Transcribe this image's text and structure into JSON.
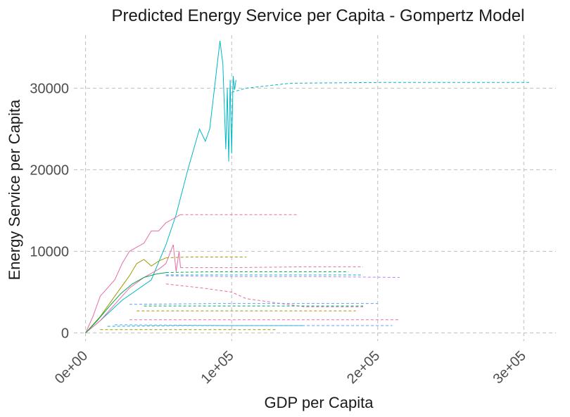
{
  "chart_data": {
    "type": "line",
    "title": "Predicted Energy Service per Capita - Gompertz Model",
    "xlabel": "GDP per Capita",
    "ylabel": "Energy Service per Capita",
    "xlim": [
      -8000,
      322000
    ],
    "ylim": [
      -1000,
      36500
    ],
    "x_ticks": [
      0,
      100000,
      200000,
      300000
    ],
    "x_tick_labels": [
      "0e+00",
      "1e+05",
      "2e+05",
      "3e+05"
    ],
    "y_ticks": [
      0,
      10000,
      20000,
      30000
    ],
    "y_tick_labels": [
      "0",
      "10000",
      "20000",
      "30000"
    ],
    "grid": true,
    "legend": "none",
    "series": [
      {
        "color": "#00B8C4",
        "style": "solid",
        "x": [
          0,
          10000,
          25000,
          45000,
          55000,
          62000,
          70000,
          78000,
          82000,
          85000,
          92000,
          94000,
          96000,
          97000,
          98000,
          99000,
          100000,
          101000,
          102000,
          103000
        ],
        "y": [
          0,
          1500,
          4000,
          6500,
          10800,
          14500,
          20000,
          25000,
          23500,
          25000,
          35800,
          33000,
          22500,
          30000,
          21000,
          31000,
          22000,
          31500,
          29800,
          31000
        ]
      },
      {
        "color": "#00B8C4",
        "style": "dashed",
        "x": [
          100000,
          110000,
          140000,
          200000,
          250000,
          305000
        ],
        "y": [
          29500,
          30000,
          30600,
          30700,
          30700,
          30700
        ]
      },
      {
        "color": "#E86BA8",
        "style": "solid",
        "x": [
          0,
          5000,
          10000,
          20000,
          25000,
          30000,
          40000,
          45000,
          50000,
          55000,
          60000,
          65000
        ],
        "y": [
          0,
          2000,
          4500,
          6500,
          8500,
          10000,
          11000,
          12500,
          12500,
          13500,
          14000,
          14500
        ]
      },
      {
        "color": "#E86BA8",
        "style": "dashed",
        "x": [
          65000,
          80000,
          100000,
          145000
        ],
        "y": [
          14500,
          14500,
          14500,
          14500
        ]
      },
      {
        "color": "#E86BA8",
        "style": "solid",
        "x": [
          0,
          10000,
          20000,
          30000,
          40000,
          50000,
          55000,
          60000,
          62000,
          64000,
          65000
        ],
        "y": [
          0,
          1500,
          3500,
          5500,
          6800,
          7800,
          8500,
          10800,
          7500,
          10000,
          8000
        ]
      },
      {
        "color": "#E86BA8",
        "style": "dashed",
        "x": [
          65000,
          100000,
          150000,
          190000
        ],
        "y": [
          8000,
          8000,
          8100,
          8100
        ]
      },
      {
        "color": "#9E9A00",
        "style": "solid",
        "x": [
          0,
          10000,
          20000,
          30000,
          35000,
          40000,
          45000,
          50000,
          55000
        ],
        "y": [
          0,
          2000,
          4500,
          7000,
          8500,
          9000,
          8200,
          8800,
          9200
        ]
      },
      {
        "color": "#9E9A00",
        "style": "dashed",
        "x": [
          55000,
          70000,
          90000,
          110000
        ],
        "y": [
          9200,
          9300,
          9300,
          9300
        ]
      },
      {
        "color": "#00A651",
        "style": "solid",
        "x": [
          0,
          8000,
          16000,
          24000,
          32000,
          40000,
          48000,
          55000
        ],
        "y": [
          0,
          1500,
          3200,
          4800,
          6000,
          6800,
          7200,
          7400
        ]
      },
      {
        "color": "#00A651",
        "style": "dashed",
        "x": [
          55000,
          90000,
          130000,
          180000
        ],
        "y": [
          7400,
          7500,
          7500,
          7500
        ]
      },
      {
        "color": "#C77CFF",
        "style": "dashed",
        "x": [
          55000,
          100000,
          160000,
          215000
        ],
        "y": [
          7000,
          6900,
          6900,
          6800
        ]
      },
      {
        "color": "#00B8C4",
        "style": "dashed",
        "x": [
          55000,
          90000,
          140000,
          190000
        ],
        "y": [
          7100,
          7100,
          7100,
          7100
        ]
      },
      {
        "color": "#E86BA8",
        "style": "dashed",
        "x": [
          55000,
          80000,
          100000,
          110000,
          150000,
          190000
        ],
        "y": [
          6000,
          5500,
          5000,
          4200,
          3200,
          3200
        ]
      },
      {
        "color": "#00A651",
        "style": "dashed",
        "x": [
          40000,
          90000,
          150000,
          190000
        ],
        "y": [
          3300,
          3300,
          3300,
          3300
        ]
      },
      {
        "color": "#9E9A00",
        "style": "dashed",
        "x": [
          35000,
          90000,
          140000,
          185000
        ],
        "y": [
          2700,
          2700,
          2700,
          2700
        ]
      },
      {
        "color": "#619CFF",
        "style": "dashed",
        "x": [
          30000,
          90000,
          150000,
          200000
        ],
        "y": [
          3500,
          3600,
          3600,
          3600
        ]
      },
      {
        "color": "#E86BA8",
        "style": "dashed",
        "x": [
          30000,
          100000,
          160000,
          215000
        ],
        "y": [
          1600,
          1600,
          1600,
          1600
        ]
      },
      {
        "color": "#619CFF",
        "style": "dashed",
        "x": [
          20000,
          100000,
          160000,
          210000
        ],
        "y": [
          1000,
          900,
          900,
          900
        ]
      },
      {
        "color": "#00B8C4",
        "style": "dashed",
        "x": [
          15000,
          70000,
          120000,
          150000
        ],
        "y": [
          800,
          900,
          900,
          900
        ]
      },
      {
        "color": "#9E9A00",
        "style": "dashed",
        "x": [
          10000,
          60000,
          100000,
          130000
        ],
        "y": [
          400,
          400,
          400,
          400
        ]
      }
    ]
  }
}
